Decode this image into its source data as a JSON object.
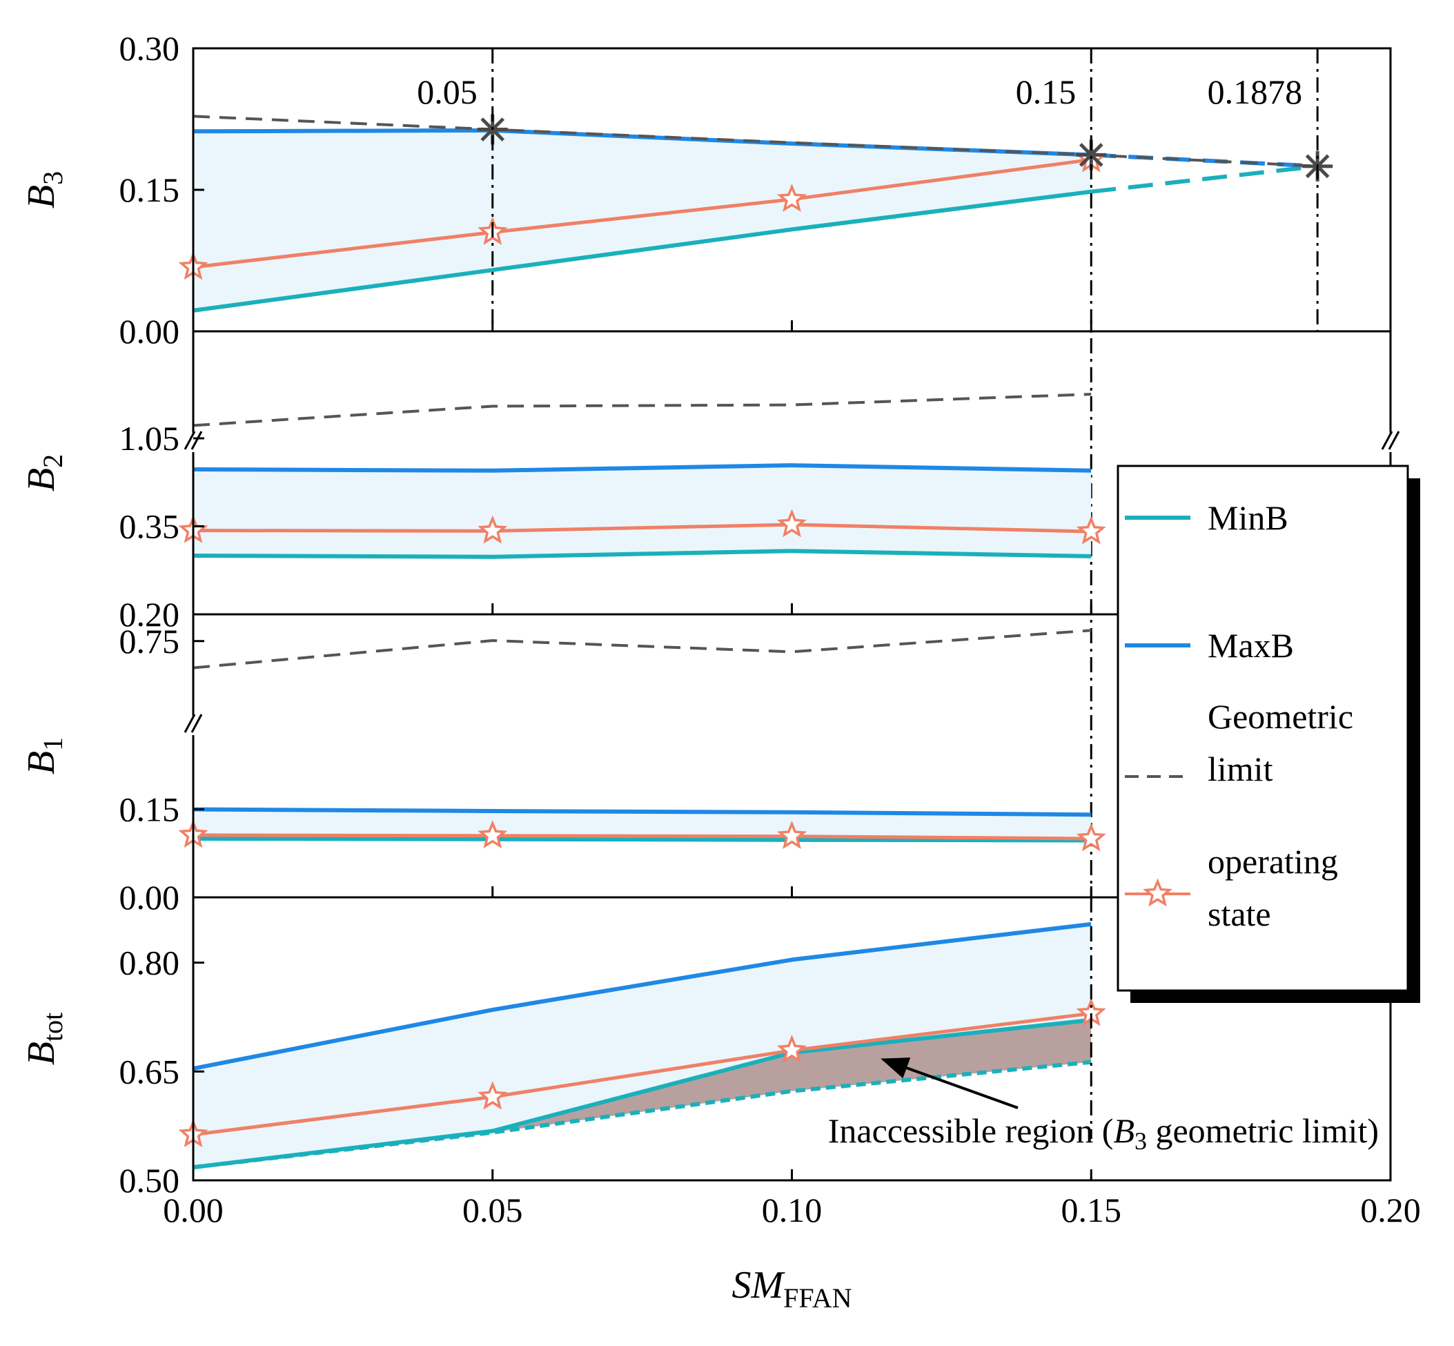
{
  "chart_data": {
    "type": "line",
    "x_axis": {
      "label": "SM",
      "label_sub": "FFAN",
      "xlim": [
        0,
        0.2
      ],
      "ticks": [
        0.0,
        0.05,
        0.1,
        0.15,
        0.2
      ],
      "tick_labels": [
        "0.00",
        "0.05",
        "0.10",
        "0.15",
        "0.20"
      ]
    },
    "legend": {
      "position": "right",
      "entries": [
        {
          "key": "minb",
          "label": "MinB",
          "color": "#1ab0bb",
          "style": "solid"
        },
        {
          "key": "maxb",
          "label": "MaxB",
          "color": "#1f88e5",
          "style": "solid"
        },
        {
          "key": "geom",
          "label_lines": [
            "Geometric",
            "limit"
          ],
          "color": "#555555",
          "style": "dashed"
        },
        {
          "key": "op",
          "label_lines": [
            "operating",
            "state"
          ],
          "color": "#f08066",
          "style": "star"
        }
      ]
    },
    "colors": {
      "minb": "#1ab0bb",
      "maxb": "#1f88e5",
      "geom": "#555555",
      "op": "#f08066",
      "fill": "#eaf6fb",
      "inaccessible": "#b8a09f",
      "vline": "#000000"
    },
    "panels": [
      {
        "id": "b3",
        "ylabel": "B",
        "ylabel_sub": "3",
        "ylim": [
          0,
          0.3
        ],
        "yticks": [
          0.0,
          0.15,
          0.3
        ],
        "ytick_labels": [
          "0.00",
          "0.15",
          "0.30"
        ],
        "vlines": [
          {
            "x": 0.05,
            "label": "0.05"
          },
          {
            "x": 0.15,
            "label": "0.15"
          },
          {
            "x": 0.1878,
            "label": "0.1878"
          }
        ],
        "series": {
          "minb": {
            "x": [
              0,
              0.05,
              0.1,
              0.15
            ],
            "y": [
              0.022,
              0.065,
              0.108,
              0.148
            ]
          },
          "minb_ext": {
            "x": [
              0.15,
              0.1878
            ],
            "y": [
              0.148,
              0.175
            ]
          },
          "maxb": {
            "x": [
              0,
              0.05,
              0.1,
              0.15
            ],
            "y": [
              0.212,
              0.213,
              0.199,
              0.187
            ]
          },
          "maxb_ext": {
            "x": [
              0.15,
              0.1878
            ],
            "y": [
              0.187,
              0.175
            ]
          },
          "geom": {
            "x": [
              0,
              0.05,
              0.1,
              0.15,
              0.1878
            ],
            "y": [
              0.228,
              0.214,
              0.2,
              0.187,
              0.175
            ]
          },
          "op": {
            "x": [
              0,
              0.05,
              0.1,
              0.15
            ],
            "y": [
              0.068,
              0.105,
              0.14,
              0.182
            ]
          }
        },
        "star_markers": [
          {
            "x": 0.05,
            "y": 0.214
          },
          {
            "x": 0.15,
            "y": 0.187
          },
          {
            "x": 0.1878,
            "y": 0.175
          }
        ]
      },
      {
        "id": "b2",
        "ylabel": "B",
        "ylabel_sub": "2",
        "ytick_labels": [
          "0.20",
          "0.35",
          "1.05"
        ],
        "broken_axis": true,
        "lower_range": [
          0.2,
          0.5
        ],
        "lower_ticks": [
          0.2,
          0.35
        ],
        "upper_range": [
          1.05,
          1.3
        ],
        "upper_ticks": [
          1.05
        ],
        "series": {
          "minb": {
            "x": [
              0,
              0.05,
              0.1,
              0.15
            ],
            "y": [
              0.3,
              0.298,
              0.308,
              0.299
            ]
          },
          "maxb": {
            "x": [
              0,
              0.05,
              0.1,
              0.15
            ],
            "y": [
              0.447,
              0.445,
              0.454,
              0.445
            ]
          },
          "op": {
            "x": [
              0,
              0.05,
              0.1,
              0.15
            ],
            "y": [
              0.343,
              0.342,
              0.353,
              0.341
            ]
          },
          "geom": {
            "x": [
              0,
              0.05,
              0.1,
              0.15
            ],
            "y": [
              1.08,
              1.125,
              1.128,
              1.153
            ]
          }
        }
      },
      {
        "id": "b1",
        "ylabel": "B",
        "ylabel_sub": "1",
        "ytick_labels": [
          "0.00",
          "0.15",
          "0.75"
        ],
        "broken_axis": true,
        "lower_range": [
          0.0,
          0.3
        ],
        "lower_ticks": [
          0.0,
          0.15
        ],
        "upper_range": [
          0.6,
          0.8
        ],
        "upper_ticks": [
          0.75
        ],
        "series": {
          "minb": {
            "x": [
              0,
              0.05,
              0.1,
              0.15
            ],
            "y": [
              0.1,
              0.099,
              0.098,
              0.097
            ]
          },
          "maxb": {
            "x": [
              0,
              0.05,
              0.1,
              0.15
            ],
            "y": [
              0.15,
              0.147,
              0.145,
              0.141
            ]
          },
          "op": {
            "x": [
              0,
              0.05,
              0.1,
              0.15
            ],
            "y": [
              0.106,
              0.105,
              0.104,
              0.1
            ]
          },
          "geom": {
            "x": [
              0,
              0.05,
              0.1,
              0.15
            ],
            "y": [
              0.7,
              0.751,
              0.73,
              0.77
            ]
          }
        }
      },
      {
        "id": "btot",
        "ylabel": "B",
        "ylabel_sub": "tot",
        "ylim": [
          0.5,
          0.89
        ],
        "yticks": [
          0.5,
          0.65,
          0.8
        ],
        "ytick_labels": [
          "0.50",
          "0.65",
          "0.80"
        ],
        "series": {
          "minb": {
            "x": [
              0,
              0.05,
              0.1,
              0.15
            ],
            "y": [
              0.518,
              0.568,
              0.676,
              0.721
            ]
          },
          "minb_limit": {
            "x": [
              0,
              0.05,
              0.1,
              0.15
            ],
            "y": [
              0.518,
              0.566,
              0.623,
              0.663
            ]
          },
          "maxb": {
            "x": [
              0,
              0.05,
              0.1,
              0.15
            ],
            "y": [
              0.654,
              0.735,
              0.804,
              0.853
            ]
          },
          "op": {
            "x": [
              0,
              0.05,
              0.1,
              0.15
            ],
            "y": [
              0.563,
              0.615,
              0.679,
              0.73
            ]
          }
        },
        "annotation": "Inaccessible region (B₃ geometric limit)",
        "annotation_parts": [
          "Inaccessible region (",
          "B",
          "3",
          " geometric limit)"
        ]
      }
    ]
  }
}
